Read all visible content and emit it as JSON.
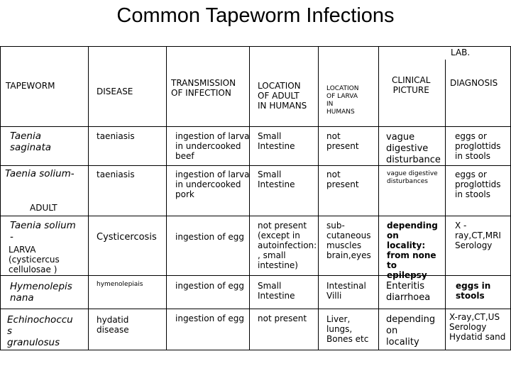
{
  "title": "Common Tapeworm Infections",
  "headers": {
    "lab": "LAB.",
    "tapeworm": "TAPEWORM",
    "disease": "DISEASE",
    "transmission": "TRANSMISSION\nOF INFECTION",
    "adult_location": "LOCATION\nOF ADULT\nIN HUMANS",
    "larva_location": "LOCATION\n OF LARVA\nIN\nHUMANS",
    "clinical": "CLINICAL\nPICTURE",
    "diagnosis": "DIAGNOSIS"
  },
  "rows": {
    "saginata": {
      "tapeworm": "Taenia\nsaginata",
      "disease": "taeniasis",
      "transmission": "ingestion of larva\nin undercooked\nbeef",
      "adult": "Small\nIntestine",
      "larva": "not\npresent",
      "clinical": "vague\ndigestive\ndisturbance",
      "diagnosis": "eggs or\nproglottids\nin stools"
    },
    "solium_adult": {
      "tapeworm": "Taenia solium-",
      "stage": "ADULT",
      "disease": "taeniasis",
      "transmission": "ingestion of larva\nin undercooked\npork",
      "adult": "Small\nIntestine",
      "larva": "not\npresent",
      "clinical": "vague digestive\ndisturbances",
      "diagnosis": "eggs or\nproglottids\nin stools"
    },
    "solium_larva": {
      "tapeworm": "Taenia solium\n-",
      "stage": "LARVA\n(cysticercus\ncellulosae )",
      "disease": "Cysticercosis",
      "transmission": "ingestion of egg",
      "adult": "not present\n(except in\nautoinfection:\n, small\nintestine)",
      "larva": "sub-\ncutaneous\nmuscles\nbrain,eyes",
      "clinical": "depending\non\nlocality:\nfrom none\nto\nepilepsy",
      "diagnosis": "X -\nray,CT,MRI\nSerology"
    },
    "hymenolepis": {
      "tapeworm": "Hymenolepis\nnana",
      "disease": "hymenolepiais",
      "transmission": "ingestion of egg",
      "adult": "Small\nIntestine",
      "larva": "Intestinal\nVilli",
      "clinical": "Enteritis\ndiarrhoea",
      "diagnosis": "eggs in\nstools"
    },
    "echinococcus": {
      "tapeworm": "Echinochoccu\ns\n granulosus",
      "disease": "hydatid\ndisease",
      "transmission": "ingestion of egg",
      "adult": "not present",
      "larva": "Liver,\nlungs,\nBones etc",
      "clinical": "depending\non\nlocality",
      "diagnosis": "X-ray,CT,US\nSerology\nHydatid sand"
    }
  },
  "colors": {
    "border": "#000000",
    "text": "#000000",
    "background": "#ffffff"
  }
}
